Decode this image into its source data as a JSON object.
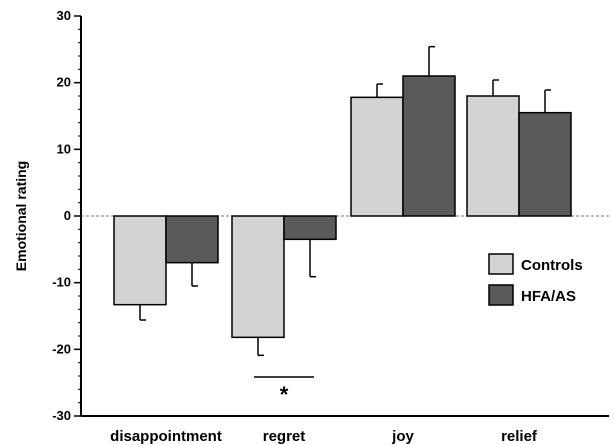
{
  "chart_data": {
    "type": "bar",
    "title": "",
    "xlabel": "",
    "ylabel": "Emotional rating",
    "ylim": [
      -30,
      30
    ],
    "yticks": [
      -30,
      -20,
      -10,
      0,
      10,
      20,
      30
    ],
    "minor_tick_step": 2,
    "categories": [
      "disappointment",
      "regret",
      "joy",
      "relief"
    ],
    "series": [
      {
        "name": "Controls",
        "color": "#d3d3d3",
        "values": [
          -13.3,
          -18.2,
          17.8,
          18.0
        ],
        "errors": [
          2.3,
          2.7,
          2.0,
          2.4
        ]
      },
      {
        "name": "HFA/AS",
        "color": "#5a5a5a",
        "values": [
          -7.0,
          -3.5,
          21.0,
          15.5
        ],
        "errors": [
          3.5,
          5.6,
          4.4,
          3.4
        ]
      }
    ],
    "zero_line": "dashed",
    "legend_placement": "right",
    "significance": {
      "category": "regret",
      "label": "*"
    },
    "grid": false
  }
}
